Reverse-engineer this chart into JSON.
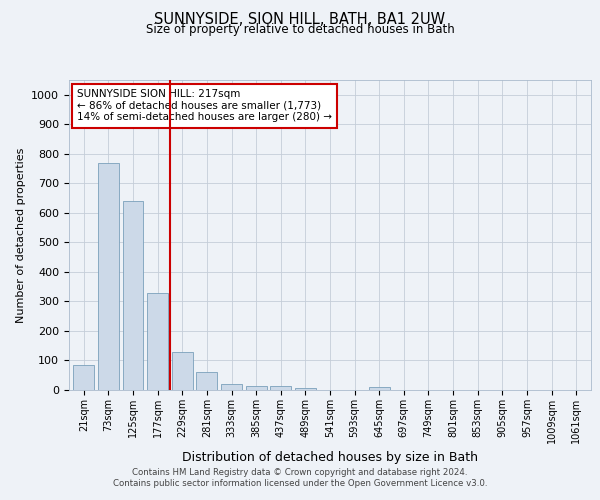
{
  "title": "SUNNYSIDE, SION HILL, BATH, BA1 2UW",
  "subtitle": "Size of property relative to detached houses in Bath",
  "xlabel": "Distribution of detached houses by size in Bath",
  "ylabel": "Number of detached properties",
  "categories": [
    "21sqm",
    "73sqm",
    "125sqm",
    "177sqm",
    "229sqm",
    "281sqm",
    "333sqm",
    "385sqm",
    "437sqm",
    "489sqm",
    "541sqm",
    "593sqm",
    "645sqm",
    "697sqm",
    "749sqm",
    "801sqm",
    "853sqm",
    "905sqm",
    "957sqm",
    "1009sqm",
    "1061sqm"
  ],
  "values": [
    85,
    770,
    640,
    330,
    130,
    60,
    22,
    15,
    15,
    8,
    0,
    0,
    10,
    0,
    0,
    0,
    0,
    0,
    0,
    0,
    0
  ],
  "bar_color": "#ccd9e8",
  "bar_edge_color": "#7aa0bb",
  "vline_color": "#cc0000",
  "vline_pos": 3.5,
  "annotation_title": "SUNNYSIDE SION HILL: 217sqm",
  "annotation_line1": "← 86% of detached houses are smaller (1,773)",
  "annotation_line2": "14% of semi-detached houses are larger (280) →",
  "annotation_box_edge": "#cc0000",
  "ylim": [
    0,
    1050
  ],
  "yticks": [
    0,
    100,
    200,
    300,
    400,
    500,
    600,
    700,
    800,
    900,
    1000
  ],
  "footer_line1": "Contains HM Land Registry data © Crown copyright and database right 2024.",
  "footer_line2": "Contains public sector information licensed under the Open Government Licence v3.0.",
  "bg_color": "#eef2f7",
  "plot_bg_color": "#eef2f7",
  "grid_color": "#c5cdd8",
  "title_fontsize": 10.5,
  "subtitle_fontsize": 8.5,
  "ylabel_fontsize": 8,
  "xlabel_fontsize": 9,
  "ytick_fontsize": 8,
  "xtick_fontsize": 7,
  "ann_fontsize": 7.5,
  "footer_fontsize": 6.2
}
